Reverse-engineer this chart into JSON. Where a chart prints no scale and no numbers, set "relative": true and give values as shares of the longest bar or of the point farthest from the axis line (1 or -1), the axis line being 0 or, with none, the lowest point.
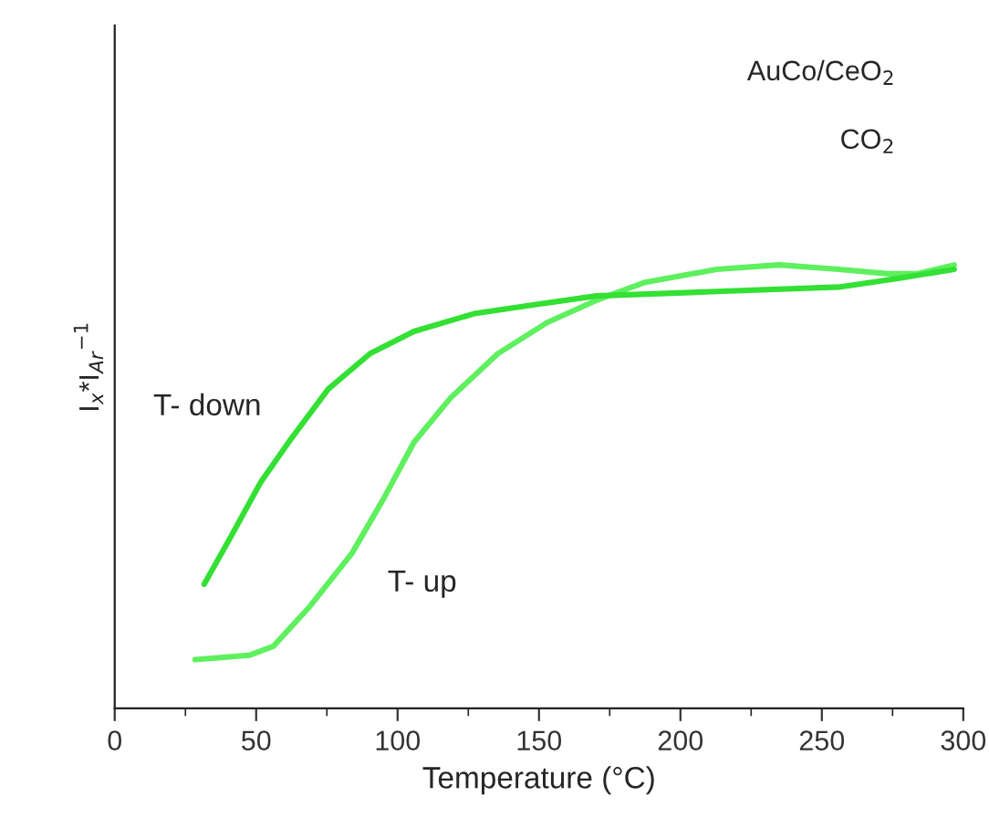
{
  "chart_data": {
    "type": "line",
    "relative": true,
    "xlabel": "Temperature (°C)",
    "ylabel": "I$_{x}$*I$_{Ar}$$^{−1}$",
    "xlim": [
      0,
      300
    ],
    "xticks": [
      0,
      50,
      100,
      150,
      200,
      250,
      300
    ],
    "grid": false,
    "legend": false,
    "marker": "none",
    "line_style": "solid",
    "series": [
      {
        "name": "T- up",
        "color": "#5ef05e",
        "x": [
          28.4,
          47.7,
          56.1,
          69.0,
          83.9,
          94.8,
          105.8,
          118.7,
          135.5,
          152.9,
          170.3,
          187.1,
          212.9,
          234.8,
          256.1,
          273.5,
          283.9,
          296.8
        ],
        "values": [
          0.11,
          0.12,
          0.14,
          0.23,
          0.35,
          0.47,
          0.6,
          0.7,
          0.8,
          0.87,
          0.92,
          0.96,
          0.99,
          1.0,
          0.99,
          0.98,
          0.98,
          1.0
        ]
      },
      {
        "name": "T- down",
        "color": "#33e033",
        "x": [
          31.6,
          41.3,
          51.6,
          62.6,
          75.5,
          90.3,
          105.8,
          127.1,
          148.4,
          170.3,
          212.9,
          256.1,
          277.4,
          296.8
        ],
        "values": [
          0.28,
          0.39,
          0.51,
          0.61,
          0.72,
          0.8,
          0.85,
          0.89,
          0.91,
          0.93,
          0.94,
          0.95,
          0.97,
          0.99
        ]
      }
    ],
    "annotations": [
      "AuCo/CeO$_{2}$",
      "CO$_{2}$"
    ]
  }
}
